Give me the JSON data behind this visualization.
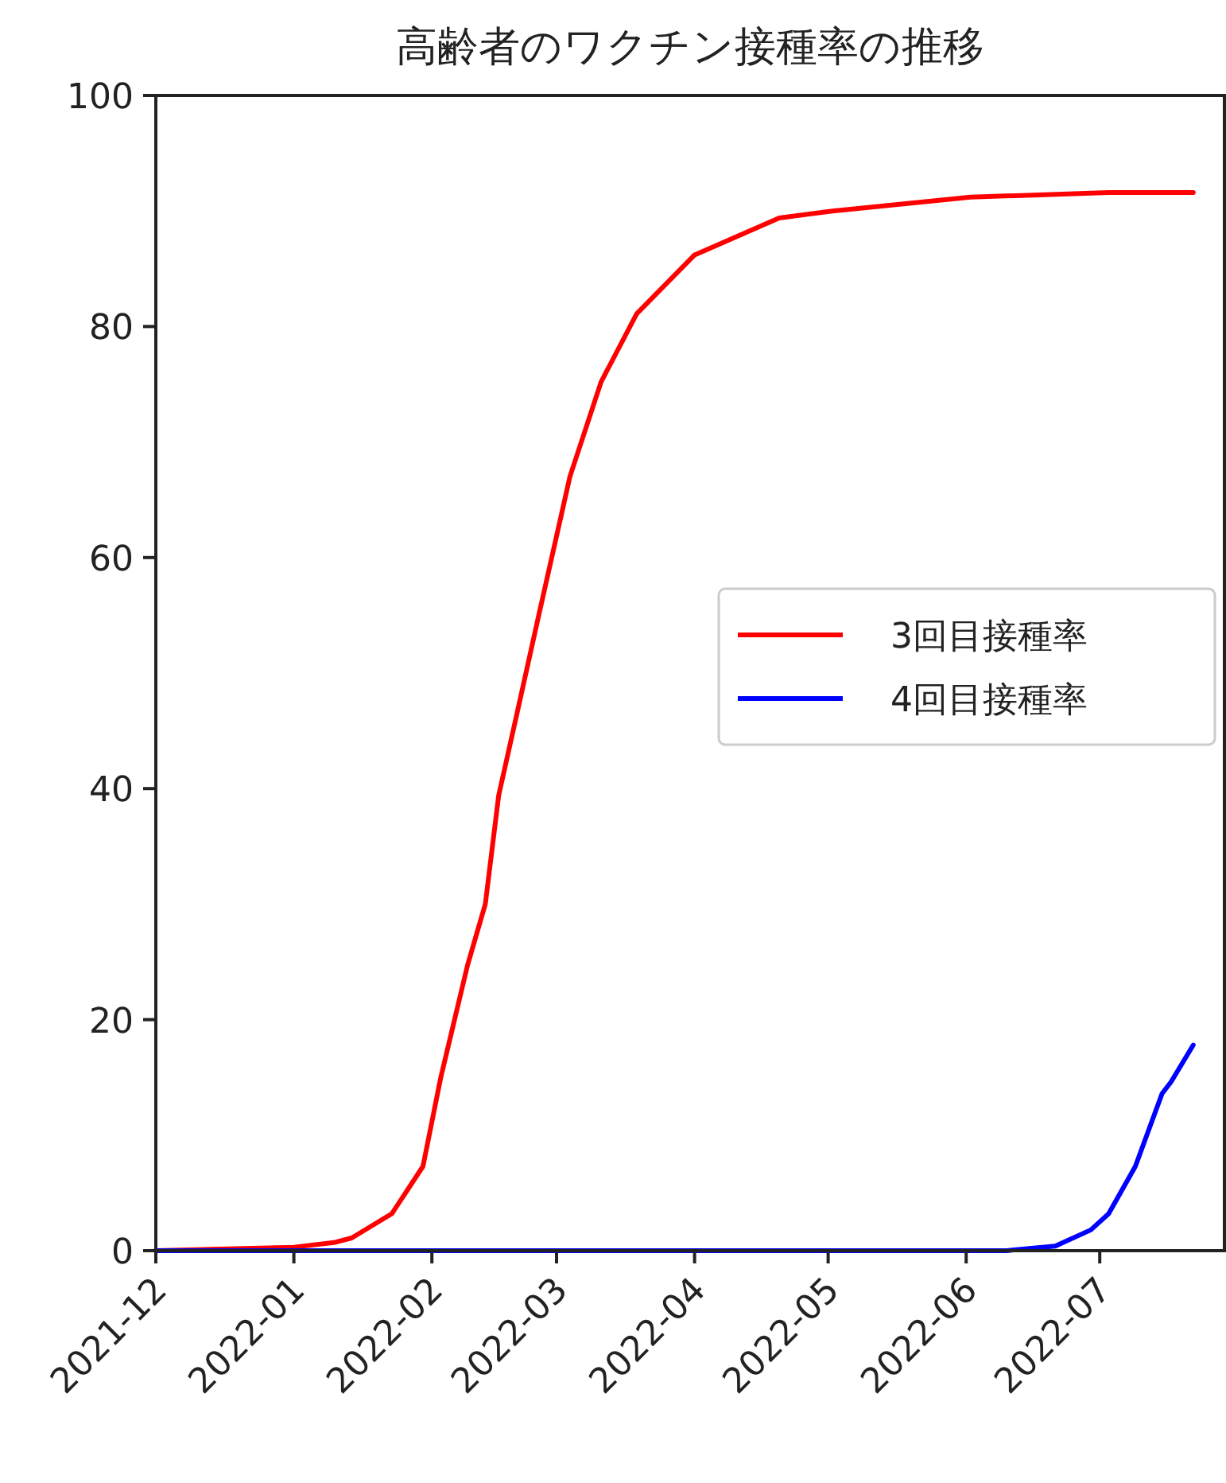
{
  "chart_data": {
    "type": "line",
    "title": "高齢者のワクチン接種率の推移",
    "xlim": [
      "2021-12-01",
      "2022-07-29"
    ],
    "xticks": [
      {
        "value": "2021-12-01",
        "label": "2021-12"
      },
      {
        "value": "2022-01-01",
        "label": "2022-01"
      },
      {
        "value": "2022-02-01",
        "label": "2022-02"
      },
      {
        "value": "2022-03-01",
        "label": "2022-03"
      },
      {
        "value": "2022-04-01",
        "label": "2022-04"
      },
      {
        "value": "2022-05-01",
        "label": "2022-05"
      },
      {
        "value": "2022-06-01",
        "label": "2022-06"
      },
      {
        "value": "2022-07-01",
        "label": "2022-07"
      }
    ],
    "ylim": [
      0,
      100
    ],
    "yticks": [
      0,
      20,
      40,
      60,
      80,
      100
    ],
    "grid": false,
    "legend": "right",
    "line_style": "solid",
    "series": [
      {
        "name": "3回目接種率",
        "color": "#ff0000",
        "x": [
          "2021-12-01",
          "2022-01-01",
          "2022-01-10",
          "2022-01-14",
          "2022-01-23",
          "2022-01-30",
          "2022-02-03",
          "2022-02-09",
          "2022-02-13",
          "2022-02-16",
          "2022-02-20",
          "2022-02-25",
          "2022-03-04",
          "2022-03-11",
          "2022-03-19",
          "2022-04-01",
          "2022-04-20",
          "2022-05-02",
          "2022-06-02",
          "2022-07-03",
          "2022-07-22"
        ],
        "values": [
          0,
          0.3,
          0.7,
          1.1,
          3.2,
          7.3,
          15,
          24.7,
          30,
          39.4,
          46.3,
          55,
          67,
          75.2,
          81.1,
          86.2,
          89.4,
          90,
          91.2,
          91.6,
          91.6
        ]
      },
      {
        "name": "4回目接種率",
        "color": "#0000ff",
        "x": [
          "2021-12-01",
          "2022-06-10",
          "2022-06-21",
          "2022-06-29",
          "2022-07-03",
          "2022-07-09",
          "2022-07-15",
          "2022-07-17",
          "2022-07-22"
        ],
        "values": [
          0,
          0,
          0.4,
          1.8,
          3.2,
          7.3,
          13.6,
          14.6,
          17.8
        ]
      }
    ]
  }
}
